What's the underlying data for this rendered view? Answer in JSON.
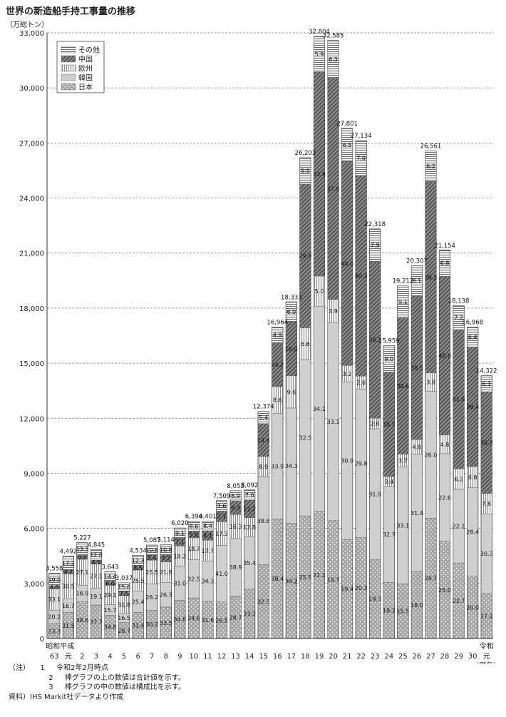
{
  "title": "世界の新造船手持工事量の推移",
  "chart_data": {
    "type": "bar",
    "stacked": true,
    "unit_label": "（万総トン）",
    "ylim": [
      0,
      33000
    ],
    "yticks": [
      "0",
      "3,000",
      "6,000",
      "9,000",
      "12,000",
      "15,000",
      "18,000",
      "21,000",
      "24,000",
      "27,000",
      "30,000",
      "33,000"
    ],
    "grid": true,
    "legend_position": "top-left",
    "categories": [
      "63",
      "元",
      "2",
      "3",
      "4",
      "5",
      "6",
      "7",
      "8",
      "9",
      "10",
      "11",
      "12",
      "13",
      "14",
      "15",
      "16",
      "17",
      "18",
      "19",
      "20",
      "21",
      "22",
      "23",
      "24",
      "25",
      "26",
      "27",
      "28",
      "29",
      "30",
      "元"
    ],
    "category_labels_top": [
      "昭和平成",
      "",
      "",
      "",
      "",
      "",
      "",
      "",
      "",
      "",
      "",
      "",
      "",
      "",
      "",
      "",
      "",
      "",
      "",
      "",
      "",
      "",
      "",
      "",
      "",
      "",
      "",
      "",
      "",
      "",
      "",
      "令和"
    ],
    "x_suffix": "(暦年)",
    "totals": [
      3558,
      4492,
      5227,
      4845,
      3643,
      3037,
      4534,
      5087,
      5114,
      6020,
      6394,
      6401,
      7509,
      8053,
      8092,
      12374,
      16964,
      18333,
      26203,
      32804,
      32585,
      27801,
      27134,
      22318,
      15959,
      19212,
      20307,
      26561,
      21154,
      18138,
      16968,
      14322
    ],
    "total_labels": [
      "3,558",
      "4,492",
      "5,227",
      "4,845",
      "3,643",
      "3,037",
      "4,534",
      "5,087",
      "5,114",
      "6,020",
      "6,394",
      "6,401",
      "7,509",
      "8,053",
      "8,092",
      "12,374",
      "16,964",
      "18,333",
      "26,203",
      "32,804",
      "32,585",
      "27,801",
      "27,134",
      "22,318",
      "15,959",
      "19,212",
      "20,307",
      "26,561",
      "21,154",
      "18,138",
      "16,968",
      "14,322"
    ],
    "series": [
      {
        "name": "日本",
        "shares": [
          "23.3",
          "31.5",
          "38.6",
          "37.7",
          "34.8",
          "28.7",
          "31.4",
          "30.2",
          "33.5",
          "34.6",
          "34.6",
          "31.6",
          "26.5",
          "28.7",
          "33.2",
          "32.5",
          "38.4",
          "34.2",
          "25.5",
          "21.1",
          "19.7",
          "19.4",
          "20.3",
          "19.3",
          "19.2",
          "15.5",
          "18.0",
          "24.7",
          "25.0",
          "22.7",
          "20.0",
          "17.1"
        ]
      },
      {
        "name": "韓国",
        "shares": [
          "20.2",
          "16.7",
          "16.9",
          "19.1",
          "15.7",
          "16.5",
          "25.4",
          "28.2",
          "26.3",
          "31.0",
          "32.5",
          "34.3",
          "41.0",
          "38.9",
          "35.4",
          "38.8",
          "33.9",
          "34.3",
          "32.5",
          "34.1",
          "33.1",
          "30.9",
          "29.8",
          "31.9",
          "32.7",
          "33.1",
          "31.4",
          "26.0",
          "22.6",
          "22.1",
          "28.4",
          "30.3"
        ]
      },
      {
        "name": "欧州",
        "shares": [
          "33.1",
          "30.5",
          "27.1",
          "27.1",
          "29.1",
          "31.8",
          "25.5",
          "25.5",
          "21.8",
          "18.2",
          "18.7",
          "17.7",
          "17.3",
          "16.3",
          "12.8",
          "8.9",
          "8.6",
          "9.6",
          "6.6",
          "5.0",
          "3.9",
          "3.2",
          "2.6",
          "2.6",
          "3.4",
          "3.7",
          "4.0",
          "3.8",
          "4.8",
          "6.2",
          "6.8",
          "7.8"
        ]
      },
      {
        "name": "中国",
        "shares": [
          "4.3",
          "4.2",
          "4.0",
          "4.1",
          "6.0",
          "7.5",
          "5.5",
          "5.4",
          "7.7",
          "7.1",
          "5.6",
          "8.1",
          "7.7",
          "9.3",
          "11.7",
          "14.4",
          "14.2",
          "16.0",
          "29.9",
          "33.9",
          "37.0",
          "40.0",
          "40.3",
          "38.3",
          "35.7",
          "38.6",
          "38.5",
          "39.3",
          "40.9",
          "41.8",
          "38.4",
          "38.7"
        ]
      },
      {
        "name": "その他",
        "shares": [
          "19.0",
          "17.2",
          "13.3",
          "12.0",
          "14.4",
          "15.6",
          "12.3",
          "10.8",
          "10.8",
          "9.1",
          "8.6",
          "8.4",
          "7.6",
          "6.9",
          "7.0",
          "5.4",
          "4.9",
          "6.0",
          "5.5",
          "5.9",
          "6.3",
          "6.5",
          "7.0",
          "7.9",
          "9.0",
          "9.1",
          "8.1",
          "6.2",
          "6.8",
          "7.2",
          "6.4",
          "6.1"
        ]
      }
    ],
    "legend_order": [
      "その他",
      "中国",
      "欧州",
      "韓国",
      "日本"
    ]
  },
  "notes": [
    {
      "lead": "（注）",
      "num": "1",
      "text": "令和2年2月時点"
    },
    {
      "lead": "",
      "num": "2",
      "text": "棒グラフの上の数値は合計値を示す。"
    },
    {
      "lead": "",
      "num": "3",
      "text": "棒グラフの中の数値は構成比を示す。"
    }
  ],
  "source": "資料）IHS Markit社データより作成"
}
